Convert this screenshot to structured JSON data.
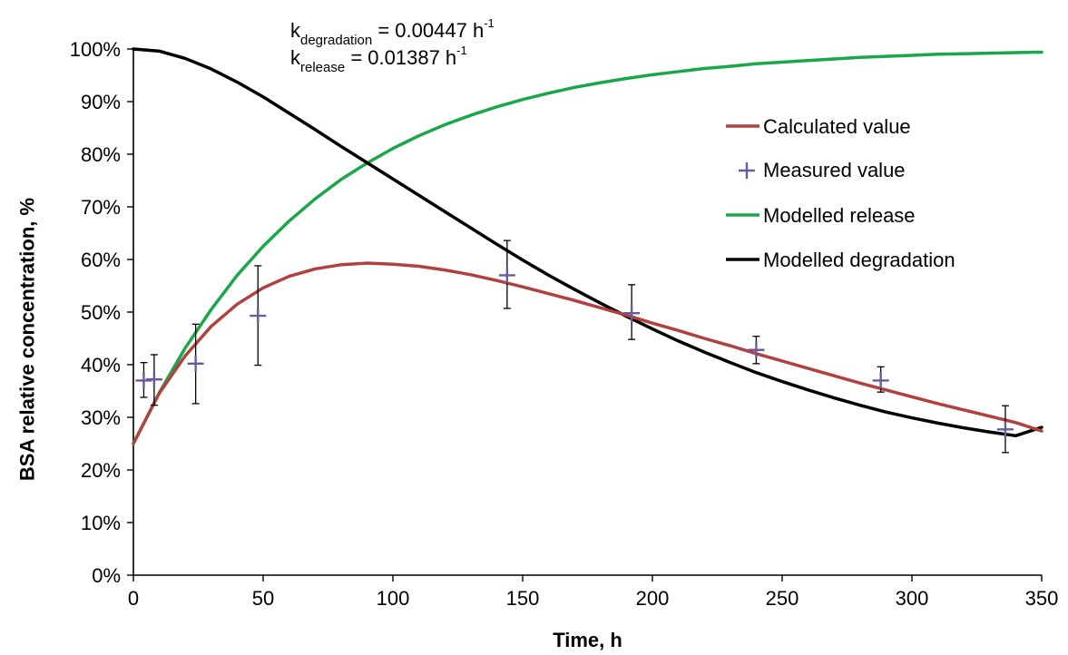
{
  "chart_data": {
    "type": "line",
    "xlabel": "Time, h",
    "ylabel": "BSA relative concentration, %",
    "xlim": [
      0,
      350
    ],
    "ylim": [
      0,
      100
    ],
    "x_ticks": [
      0,
      50,
      100,
      150,
      200,
      250,
      300,
      350
    ],
    "x_tick_labels": [
      "0",
      "50",
      "100",
      "150",
      "200",
      "250",
      "300",
      "350"
    ],
    "y_ticks": [
      0,
      10,
      20,
      30,
      40,
      50,
      60,
      70,
      80,
      90,
      100
    ],
    "y_tick_labels": [
      "0%",
      "10%",
      "20%",
      "30%",
      "40%",
      "50%",
      "60%",
      "70%",
      "80%",
      "90%",
      "100%"
    ],
    "grid": false,
    "legend_position": "right",
    "annotations": [
      {
        "k": "k",
        "sub": "degradation",
        "value": " = 0.00447 h",
        "sup": "-1"
      },
      {
        "k": "k",
        "sub": "release",
        "value": " = 0.01387 h",
        "sup": "-1"
      }
    ],
    "series": [
      {
        "name": "Calculated value",
        "kind": "line",
        "color": "#b0413e",
        "x": [
          0,
          10,
          20,
          30,
          40,
          50,
          60,
          70,
          80,
          90,
          100,
          110,
          120,
          130,
          140,
          150,
          160,
          170,
          180,
          190,
          200,
          210,
          220,
          230,
          240,
          250,
          260,
          270,
          280,
          290,
          300,
          310,
          320,
          330,
          340,
          350
        ],
        "y": [
          25.0,
          34.6,
          41.7,
          47.3,
          51.5,
          54.6,
          56.8,
          58.2,
          59.0,
          59.3,
          59.1,
          58.7,
          58.0,
          57.1,
          56.0,
          54.8,
          53.5,
          52.2,
          50.8,
          49.4,
          47.9,
          46.5,
          45.0,
          43.6,
          42.1,
          40.7,
          39.3,
          37.9,
          36.5,
          35.2,
          33.9,
          32.6,
          31.4,
          30.2,
          29.0,
          27.4
        ]
      },
      {
        "name": "Measured value",
        "kind": "points",
        "color": "#6a5a9a",
        "x": [
          4,
          8,
          24,
          48,
          144,
          192,
          240,
          288,
          336
        ],
        "y": [
          37.0,
          37.2,
          40.2,
          49.3,
          57.0,
          49.8,
          42.8,
          37.0,
          27.7
        ],
        "err_low": [
          33.8,
          32.3,
          32.6,
          39.9,
          50.7,
          44.8,
          40.2,
          34.8,
          23.3
        ],
        "err_high": [
          40.4,
          41.9,
          47.7,
          58.8,
          63.6,
          55.2,
          45.4,
          39.6,
          32.2
        ]
      },
      {
        "name": "Modelled release",
        "kind": "line",
        "color": "#1aa64a",
        "x": [
          0,
          10,
          20,
          30,
          40,
          50,
          60,
          70,
          80,
          90,
          100,
          110,
          120,
          130,
          140,
          150,
          160,
          170,
          180,
          190,
          200,
          210,
          220,
          230,
          240,
          250,
          260,
          270,
          280,
          290,
          300,
          310,
          320,
          330,
          340,
          350
        ],
        "y": [
          25.0,
          34.7,
          43.2,
          50.5,
          57.0,
          62.5,
          67.3,
          71.5,
          75.2,
          78.3,
          81.1,
          83.5,
          85.6,
          87.4,
          89.0,
          90.4,
          91.6,
          92.7,
          93.6,
          94.4,
          95.1,
          95.7,
          96.3,
          96.7,
          97.2,
          97.5,
          97.8,
          98.1,
          98.4,
          98.6,
          98.8,
          99.0,
          99.1,
          99.2,
          99.3,
          99.4
        ]
      },
      {
        "name": "Modelled degradation",
        "kind": "line",
        "color": "#000000",
        "x": [
          0,
          10,
          20,
          30,
          40,
          50,
          60,
          70,
          80,
          90,
          100,
          110,
          120,
          130,
          140,
          150,
          160,
          170,
          180,
          190,
          200,
          210,
          220,
          230,
          240,
          250,
          260,
          270,
          280,
          290,
          300,
          310,
          320,
          330,
          340,
          350
        ],
        "y": [
          100.0,
          99.6,
          98.2,
          96.2,
          93.7,
          90.9,
          87.8,
          84.7,
          81.5,
          78.4,
          75.3,
          72.2,
          69.1,
          66.0,
          62.9,
          59.9,
          57.0,
          54.3,
          51.7,
          49.2,
          46.8,
          44.5,
          42.4,
          40.4,
          38.5,
          36.8,
          35.2,
          33.7,
          32.3,
          31.0,
          29.9,
          28.9,
          28.0,
          27.2,
          26.5,
          28.1
        ]
      }
    ]
  }
}
